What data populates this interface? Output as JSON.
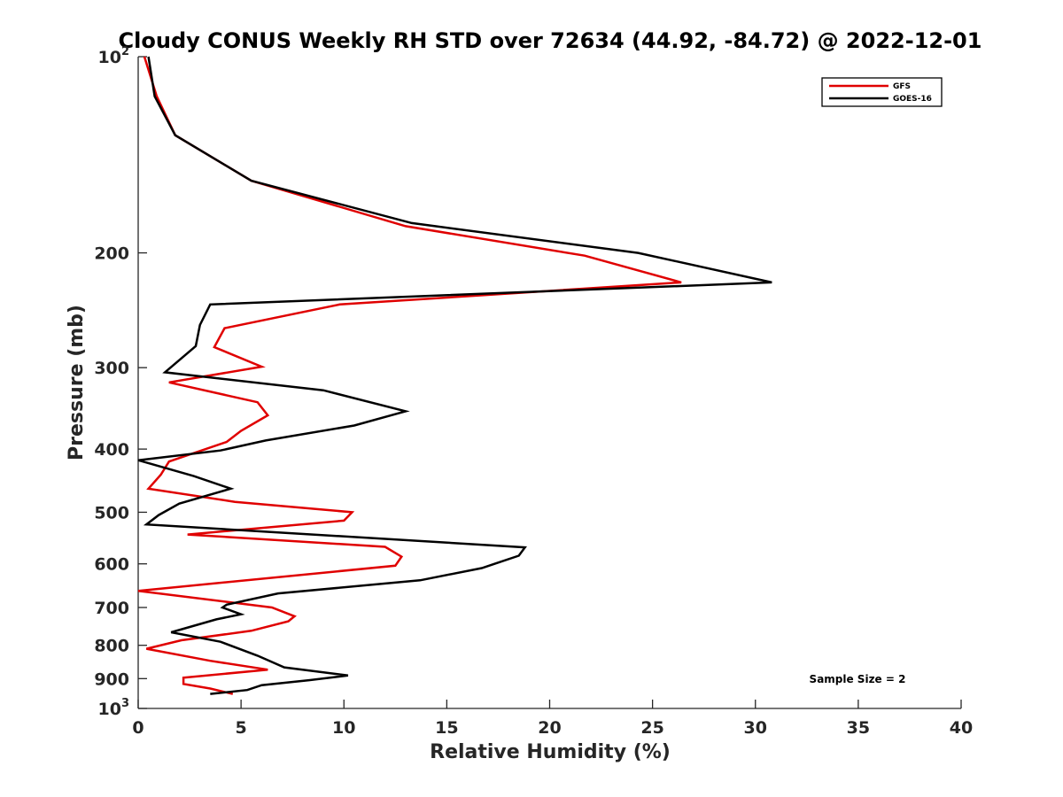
{
  "chart_data": {
    "type": "line",
    "title": "Cloudy CONUS Weekly RH STD over 72634 (44.92, -84.72) @ 2022-12-01",
    "xlabel": "Relative Humidity (%)",
    "ylabel": "Pressure (mb)",
    "xlim": [
      0,
      40
    ],
    "ylim": [
      100,
      1000
    ],
    "y_scale": "log",
    "y_reversed": true,
    "grid": false,
    "legend_position": "top-right",
    "x_ticks": [
      "0",
      "5",
      "10",
      "15",
      "20",
      "25",
      "30",
      "35",
      "40"
    ],
    "y_ticks": [
      {
        "value": 100,
        "base": "10",
        "exp": "2"
      },
      {
        "value": 200,
        "label": "200"
      },
      {
        "value": 300,
        "label": "300"
      },
      {
        "value": 400,
        "label": "400"
      },
      {
        "value": 500,
        "label": "500"
      },
      {
        "value": 600,
        "label": "600"
      },
      {
        "value": 700,
        "label": "700"
      },
      {
        "value": 800,
        "label": "800"
      },
      {
        "value": 900,
        "label": "900"
      },
      {
        "value": 1000,
        "base": "10",
        "exp": "3"
      }
    ],
    "annotation": "Sample Size = 2",
    "series": [
      {
        "name": "GFS",
        "color": "#e00000",
        "points": [
          [
            0.3,
            100
          ],
          [
            0.9,
            115
          ],
          [
            1.8,
            132
          ],
          [
            5.5,
            155
          ],
          [
            13,
            182
          ],
          [
            21.7,
            202
          ],
          [
            26.4,
            222
          ],
          [
            9.8,
            240
          ],
          [
            4.2,
            261
          ],
          [
            3.7,
            279
          ],
          [
            6.0,
            299
          ],
          [
            1.5,
            316
          ],
          [
            5.8,
            339
          ],
          [
            6.3,
            355
          ],
          [
            5.0,
            375
          ],
          [
            4.3,
            390
          ],
          [
            1.5,
            418
          ],
          [
            1.1,
            438
          ],
          [
            0.5,
            460
          ],
          [
            4.7,
            482
          ],
          [
            10.4,
            500
          ],
          [
            10.0,
            515
          ],
          [
            2.4,
            541
          ],
          [
            12.0,
            565
          ],
          [
            12.8,
            585
          ],
          [
            12.5,
            604
          ],
          [
            0.0,
            660
          ],
          [
            6.5,
            700
          ],
          [
            7.6,
            722
          ],
          [
            7.3,
            735
          ],
          [
            5.5,
            760
          ],
          [
            2.1,
            786
          ],
          [
            0.4,
            810
          ],
          [
            3.5,
            845
          ],
          [
            6.3,
            872
          ],
          [
            2.2,
            897
          ],
          [
            2.2,
            917
          ],
          [
            3.5,
            932
          ],
          [
            4.6,
            950
          ]
        ]
      },
      {
        "name": "GOES-16",
        "color": "#000000",
        "points": [
          [
            0.5,
            100
          ],
          [
            0.8,
            115
          ],
          [
            1.8,
            132
          ],
          [
            5.5,
            155
          ],
          [
            13.3,
            180
          ],
          [
            24.3,
            200
          ],
          [
            30.8,
            222
          ],
          [
            3.5,
            240
          ],
          [
            3.0,
            258
          ],
          [
            2.8,
            278
          ],
          [
            1.3,
            305
          ],
          [
            9.0,
            325
          ],
          [
            13.0,
            350
          ],
          [
            10.5,
            368
          ],
          [
            6.2,
            388
          ],
          [
            4.0,
            402
          ],
          [
            0.0,
            416
          ],
          [
            2.7,
            440
          ],
          [
            4.5,
            460
          ],
          [
            2.0,
            485
          ],
          [
            1.0,
            505
          ],
          [
            0.4,
            522
          ],
          [
            18.8,
            566
          ],
          [
            18.5,
            583
          ],
          [
            16.7,
            609
          ],
          [
            13.7,
            636
          ],
          [
            6.8,
            666
          ],
          [
            4.3,
            693
          ],
          [
            4.1,
            700
          ],
          [
            5.0,
            717
          ],
          [
            3.8,
            730
          ],
          [
            1.6,
            764
          ],
          [
            4.0,
            790
          ],
          [
            5.8,
            830
          ],
          [
            7.1,
            865
          ],
          [
            10.2,
            890
          ],
          [
            8.3,
            905
          ],
          [
            6.0,
            921
          ],
          [
            5.3,
            937
          ],
          [
            3.5,
            950
          ]
        ]
      }
    ]
  }
}
